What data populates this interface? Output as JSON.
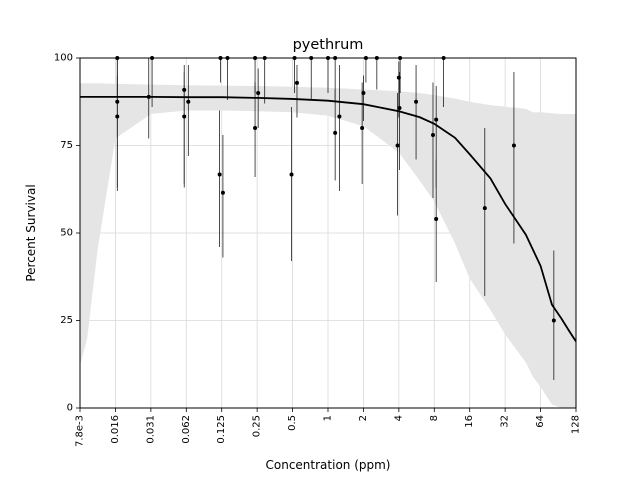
{
  "chart_data": {
    "type": "scatter",
    "title": "pyethrum",
    "xlabel": "Concentration (ppm)",
    "ylabel": "Percent Survival",
    "x_scale": "log2",
    "xlim": [
      0.0078125,
      128
    ],
    "ylim": [
      0,
      100
    ],
    "grid": true,
    "x_ticks": [
      {
        "value": 0.0078125,
        "label": "7.8e-3"
      },
      {
        "value": 0.015625,
        "label": "0.016"
      },
      {
        "value": 0.03125,
        "label": "0.031"
      },
      {
        "value": 0.0625,
        "label": "0.062"
      },
      {
        "value": 0.125,
        "label": "0.125"
      },
      {
        "value": 0.25,
        "label": "0.25"
      },
      {
        "value": 0.5,
        "label": "0.5"
      },
      {
        "value": 1,
        "label": "1"
      },
      {
        "value": 2,
        "label": "2"
      },
      {
        "value": 4,
        "label": "4"
      },
      {
        "value": 8,
        "label": "8"
      },
      {
        "value": 16,
        "label": "16"
      },
      {
        "value": 32,
        "label": "32"
      },
      {
        "value": 64,
        "label": "64"
      },
      {
        "value": 128,
        "label": "128"
      }
    ],
    "y_ticks": [
      {
        "value": 0,
        "label": "0"
      },
      {
        "value": 25,
        "label": "25"
      },
      {
        "value": 50,
        "label": "50"
      },
      {
        "value": 75,
        "label": "75"
      },
      {
        "value": 100,
        "label": "100"
      }
    ],
    "points": [
      {
        "x": 0.0162,
        "y": 100,
        "lo": 89,
        "hi": 100
      },
      {
        "x": 0.0162,
        "y": 87.5,
        "lo": 62,
        "hi": 100
      },
      {
        "x": 0.0162,
        "y": 83.3,
        "lo": 63,
        "hi": 95
      },
      {
        "x": 0.03,
        "y": 88.9,
        "lo": 77,
        "hi": 100
      },
      {
        "x": 0.032,
        "y": 100,
        "lo": 86,
        "hi": 100
      },
      {
        "x": 0.06,
        "y": 90.9,
        "lo": 63,
        "hi": 98
      },
      {
        "x": 0.06,
        "y": 83.3,
        "lo": 64,
        "hi": 96
      },
      {
        "x": 0.065,
        "y": 87.5,
        "lo": 72,
        "hi": 98
      },
      {
        "x": 0.12,
        "y": 66.7,
        "lo": 46,
        "hi": 85
      },
      {
        "x": 0.122,
        "y": 100,
        "lo": 93,
        "hi": 100
      },
      {
        "x": 0.128,
        "y": 61.5,
        "lo": 43,
        "hi": 78
      },
      {
        "x": 0.14,
        "y": 100,
        "lo": 88,
        "hi": 100
      },
      {
        "x": 0.24,
        "y": 80,
        "lo": 66,
        "hi": 93
      },
      {
        "x": 0.24,
        "y": 100,
        "lo": 90,
        "hi": 100
      },
      {
        "x": 0.255,
        "y": 90,
        "lo": 80,
        "hi": 97
      },
      {
        "x": 0.29,
        "y": 100,
        "lo": 87,
        "hi": 100
      },
      {
        "x": 0.49,
        "y": 66.7,
        "lo": 42,
        "hi": 86
      },
      {
        "x": 0.52,
        "y": 100,
        "lo": 90,
        "hi": 100
      },
      {
        "x": 0.545,
        "y": 92.9,
        "lo": 83,
        "hi": 98
      },
      {
        "x": 0.72,
        "y": 100,
        "lo": 88,
        "hi": 100
      },
      {
        "x": 1.0,
        "y": 100,
        "lo": 90,
        "hi": 100
      },
      {
        "x": 1.15,
        "y": 78.6,
        "lo": 65,
        "hi": 91
      },
      {
        "x": 1.15,
        "y": 100,
        "lo": 88,
        "hi": 100
      },
      {
        "x": 1.25,
        "y": 83.3,
        "lo": 62,
        "hi": 98
      },
      {
        "x": 1.95,
        "y": 80,
        "lo": 64,
        "hi": 93
      },
      {
        "x": 2.0,
        "y": 90,
        "lo": 82,
        "hi": 95
      },
      {
        "x": 2.1,
        "y": 100,
        "lo": 93,
        "hi": 100
      },
      {
        "x": 2.6,
        "y": 100,
        "lo": 91,
        "hi": 100
      },
      {
        "x": 3.9,
        "y": 75,
        "lo": 55,
        "hi": 90
      },
      {
        "x": 4.0,
        "y": 94.4,
        "lo": 83,
        "hi": 99
      },
      {
        "x": 4.05,
        "y": 85.7,
        "lo": 68,
        "hi": 96
      },
      {
        "x": 4.1,
        "y": 100,
        "lo": 90,
        "hi": 100
      },
      {
        "x": 5.6,
        "y": 87.5,
        "lo": 71,
        "hi": 98
      },
      {
        "x": 7.8,
        "y": 78,
        "lo": 60,
        "hi": 93
      },
      {
        "x": 8.3,
        "y": 82.4,
        "lo": 63,
        "hi": 92
      },
      {
        "x": 8.3,
        "y": 54,
        "lo": 36,
        "hi": 71
      },
      {
        "x": 9.6,
        "y": 100,
        "lo": 86,
        "hi": 100
      },
      {
        "x": 21.5,
        "y": 57.1,
        "lo": 32,
        "hi": 80
      },
      {
        "x": 38,
        "y": 75,
        "lo": 47,
        "hi": 96
      },
      {
        "x": 83,
        "y": 25,
        "lo": 8,
        "hi": 45
      }
    ],
    "fit_curve": {
      "x": [
        0.0078125,
        0.0156,
        0.0313,
        0.0625,
        0.125,
        0.25,
        0.5,
        1,
        2,
        4,
        6,
        8,
        12,
        16,
        24,
        32,
        48,
        64,
        80,
        96,
        112,
        128
      ],
      "y": [
        88.9,
        88.9,
        88.9,
        88.8,
        88.8,
        88.6,
        88.3,
        87.8,
        86.8,
        84.8,
        83.1,
        81.2,
        77.2,
        72.5,
        65.6,
        58.3,
        49.5,
        40.6,
        29.5,
        25.6,
        22.0,
        19.0
      ]
    },
    "confidence_band": {
      "x": [
        0.0078125,
        0.009,
        0.011,
        0.0156,
        0.0313,
        0.0625,
        0.125,
        0.25,
        0.5,
        1,
        2,
        4,
        6,
        8,
        12,
        16,
        24,
        32,
        48,
        55,
        64,
        80,
        96,
        112,
        128
      ],
      "upper": [
        92.8,
        92.8,
        92.8,
        92.6,
        92.4,
        92.2,
        92.1,
        92,
        91.8,
        91.5,
        91,
        90.5,
        90,
        89.4,
        88.4,
        87.5,
        86.5,
        86.1,
        85.5,
        84.5,
        84.5,
        84.2,
        84,
        84,
        84
      ],
      "lower": [
        12,
        20,
        45,
        77,
        84,
        85,
        85,
        84.8,
        84.5,
        83.5,
        80.5,
        73,
        65,
        59,
        47,
        37,
        28,
        21,
        13,
        9,
        6,
        1,
        0,
        0,
        0
      ]
    },
    "colors": {
      "band": "#e5e5e5",
      "curve": "#000000",
      "point": "#000000",
      "grid": "#d9d9d9"
    }
  }
}
